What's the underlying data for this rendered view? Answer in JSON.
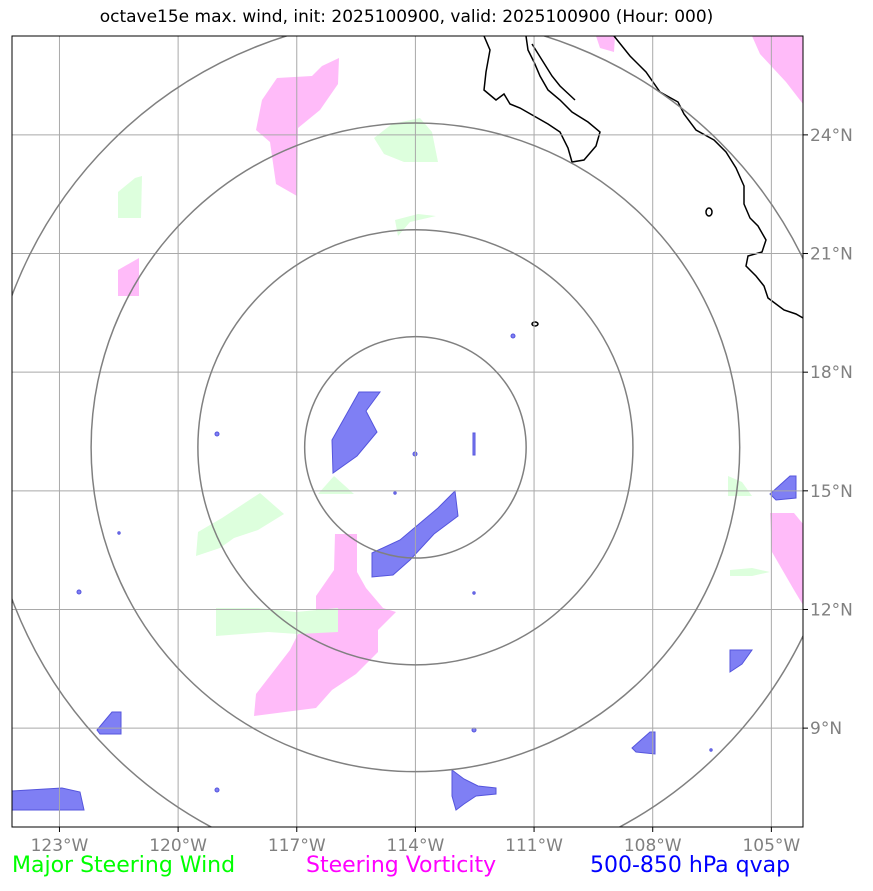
{
  "title": "octave15e max. wind, init: 2025100900, valid: 2025100900 (Hour: 000)",
  "map": {
    "lon_range": [
      -124.2,
      -104.2
    ],
    "lat_range": [
      6.5,
      26.5
    ],
    "lon_ticks": [
      {
        "value": -123,
        "label": "123°W"
      },
      {
        "value": -120,
        "label": "120°W"
      },
      {
        "value": -117,
        "label": "117°W"
      },
      {
        "value": -114,
        "label": "114°W"
      },
      {
        "value": -111,
        "label": "111°W"
      },
      {
        "value": -108,
        "label": "108°W"
      },
      {
        "value": -105,
        "label": "105°W"
      }
    ],
    "lat_ticks": [
      {
        "value": 24,
        "label": "24°N"
      },
      {
        "value": 21,
        "label": "21°N"
      },
      {
        "value": 18,
        "label": "18°N"
      },
      {
        "value": 15,
        "label": "15°N"
      },
      {
        "value": 12,
        "label": "12°N"
      },
      {
        "value": 9,
        "label": "9°N"
      }
    ],
    "storm_center": {
      "lon": -114.0,
      "lat": 16.1
    },
    "range_rings_deg": [
      2.8,
      5.5,
      8.2,
      10.9
    ]
  },
  "legend": {
    "green": "Major Steering Wind",
    "magenta": "Steering Vorticity",
    "blue": "500-850 hPa qvap"
  },
  "colors": {
    "green_fill": "#ddffdd",
    "magenta_fill": "#ffbbf9",
    "blue_fill": "#7f7ff4",
    "blue_edge": "#5555dd",
    "grid": "#a9a9a9",
    "ring": "#808080",
    "coast": "#000000",
    "legend_green": "#00ff00",
    "legend_magenta": "#ff00ff",
    "legend_blue": "#0000ff"
  }
}
